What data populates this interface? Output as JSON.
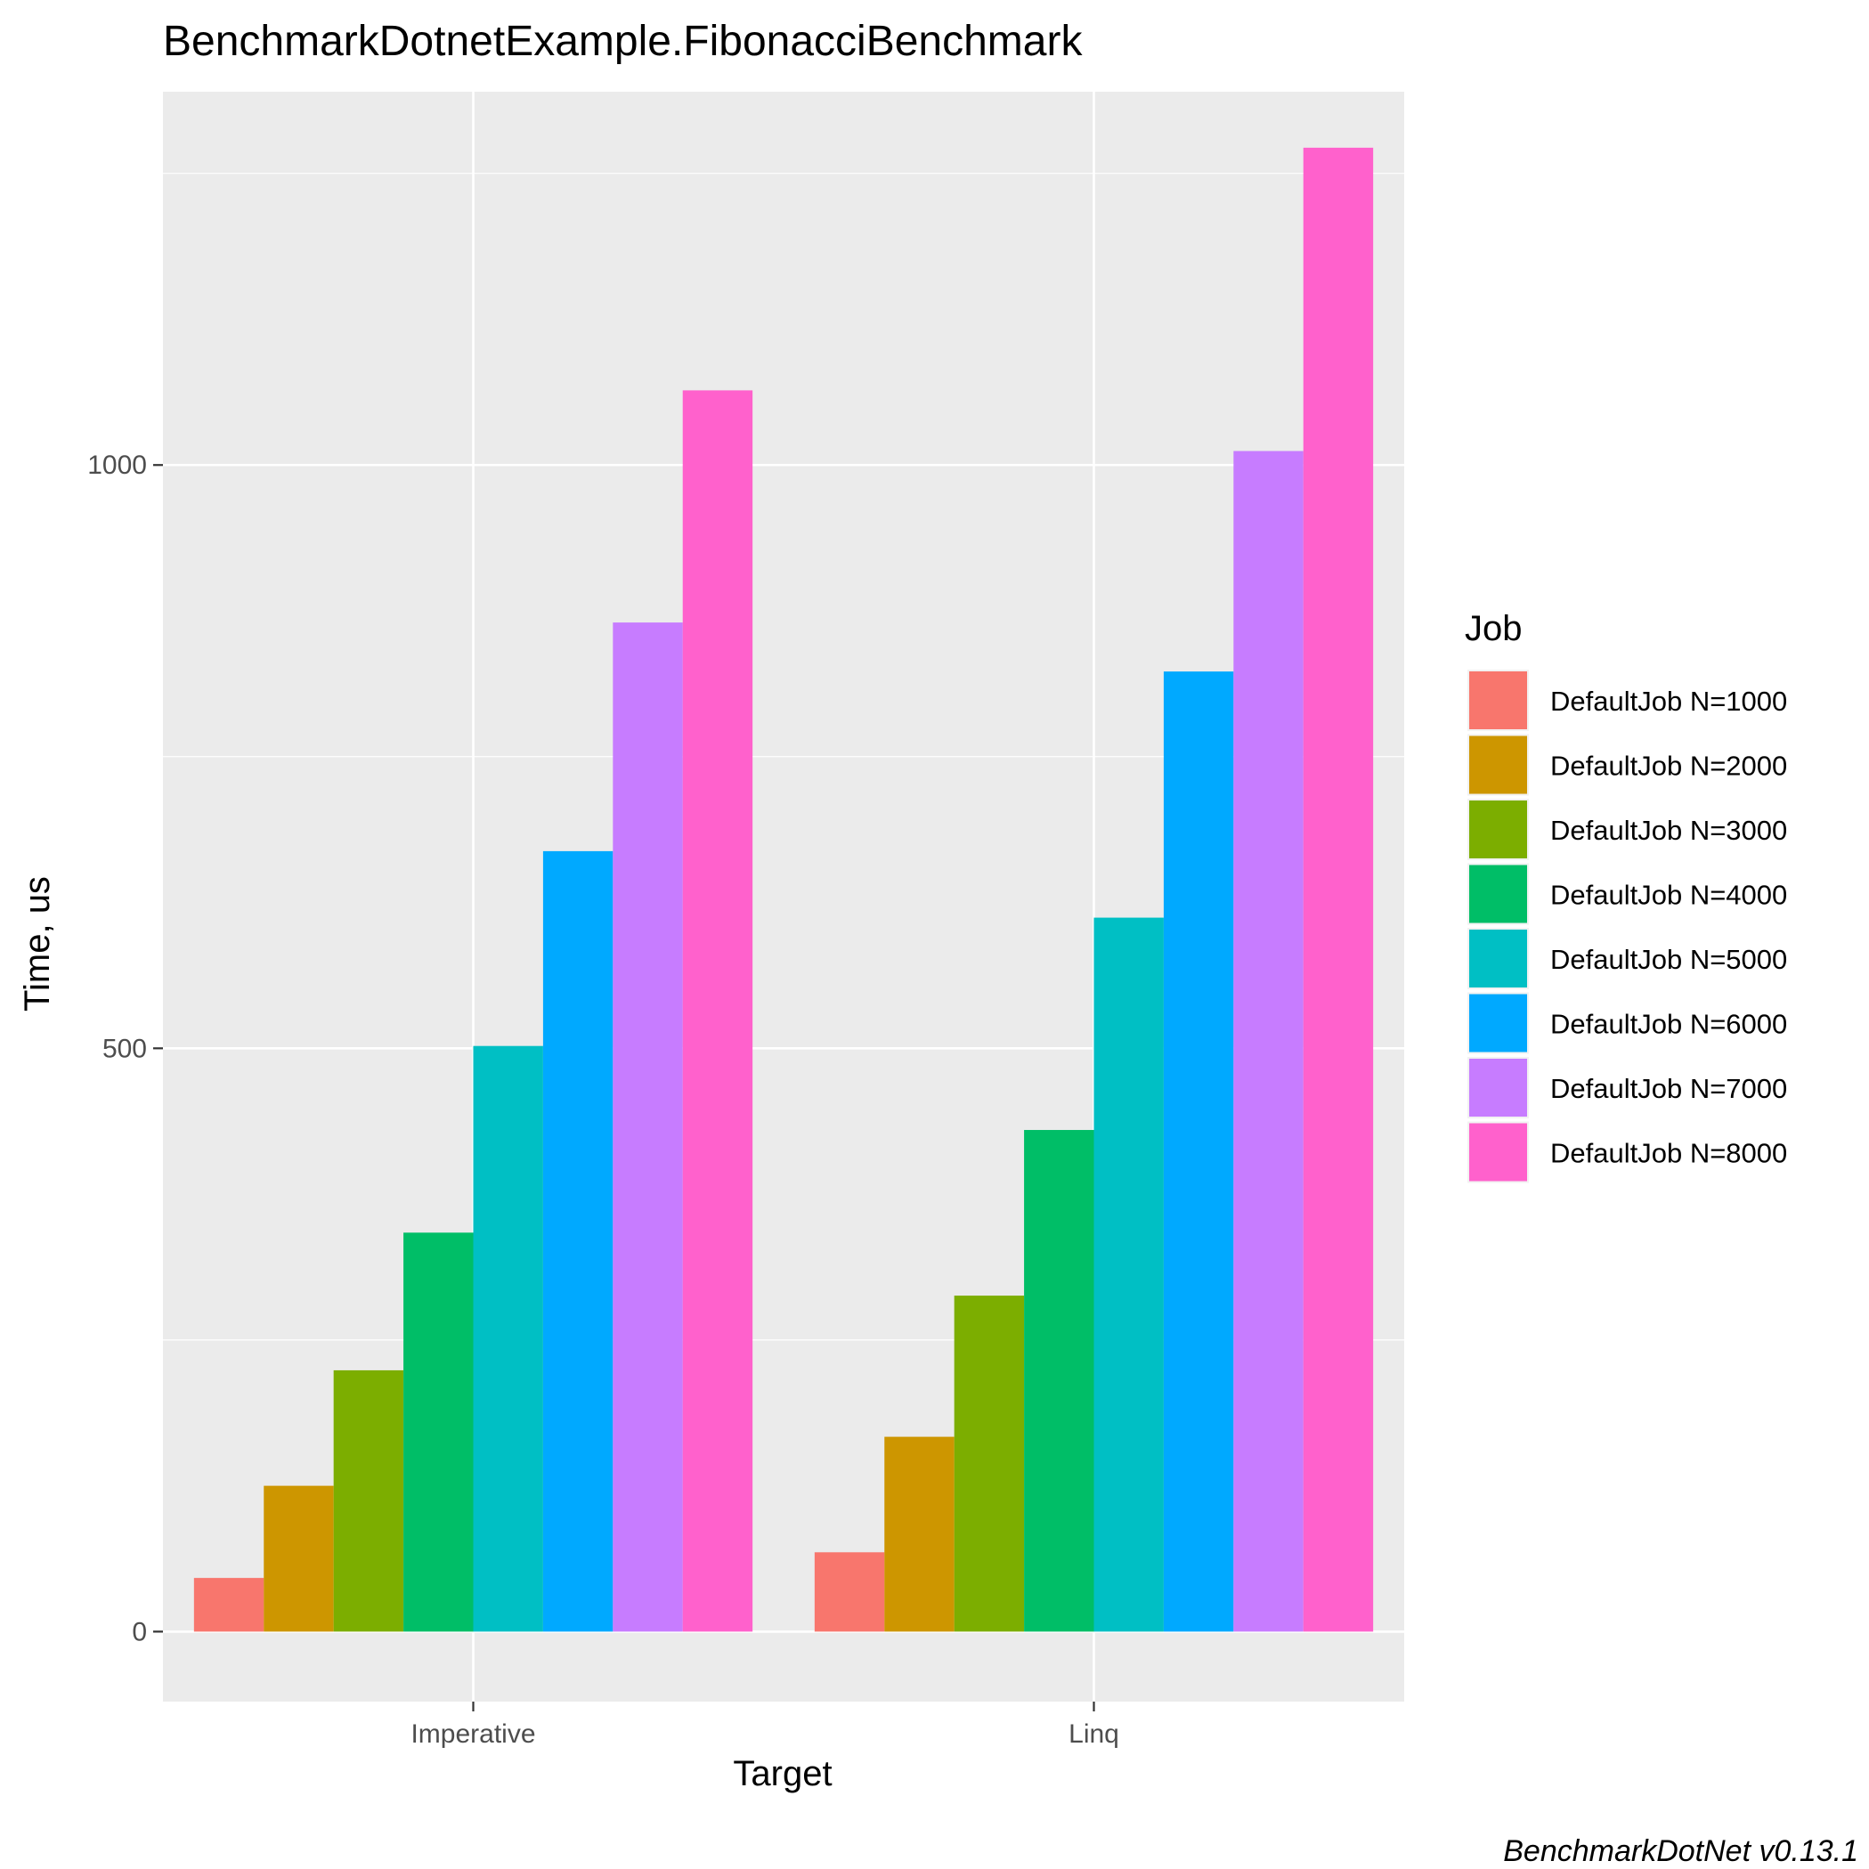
{
  "chart_data": {
    "type": "bar",
    "title": "BenchmarkDotnetExample.FibonacciBenchmark",
    "xlabel": "Target",
    "ylabel": "Time, us",
    "categories": [
      "Imperative",
      "Linq"
    ],
    "ylim": [
      -60,
      1320
    ],
    "yticks": [
      0,
      500,
      1000
    ],
    "y_minor_gridlines": [
      250,
      750,
      1250
    ],
    "grid": true,
    "legend": {
      "title": "Job",
      "position": "right"
    },
    "series": [
      {
        "name": "DefaultJob N=1000",
        "color": "#F8766D",
        "values": [
          46,
          68
        ]
      },
      {
        "name": "DefaultJob N=2000",
        "color": "#CD9600",
        "values": [
          125,
          167
        ]
      },
      {
        "name": "DefaultJob N=3000",
        "color": "#7CAE00",
        "values": [
          224,
          288
        ]
      },
      {
        "name": "DefaultJob N=4000",
        "color": "#00BE67",
        "values": [
          342,
          430
        ]
      },
      {
        "name": "DefaultJob N=5000",
        "color": "#00BFC4",
        "values": [
          502,
          612
        ]
      },
      {
        "name": "DefaultJob N=6000",
        "color": "#00A9FF",
        "values": [
          669,
          823
        ]
      },
      {
        "name": "DefaultJob N=7000",
        "color": "#C77CFF",
        "values": [
          865,
          1012
        ]
      },
      {
        "name": "DefaultJob N=8000",
        "color": "#FF61CC",
        "values": [
          1064,
          1272
        ]
      }
    ],
    "panel_background": "#EBEBEB",
    "grid_color": "#FFFFFF",
    "caption": "BenchmarkDotNet v0.13.1"
  }
}
